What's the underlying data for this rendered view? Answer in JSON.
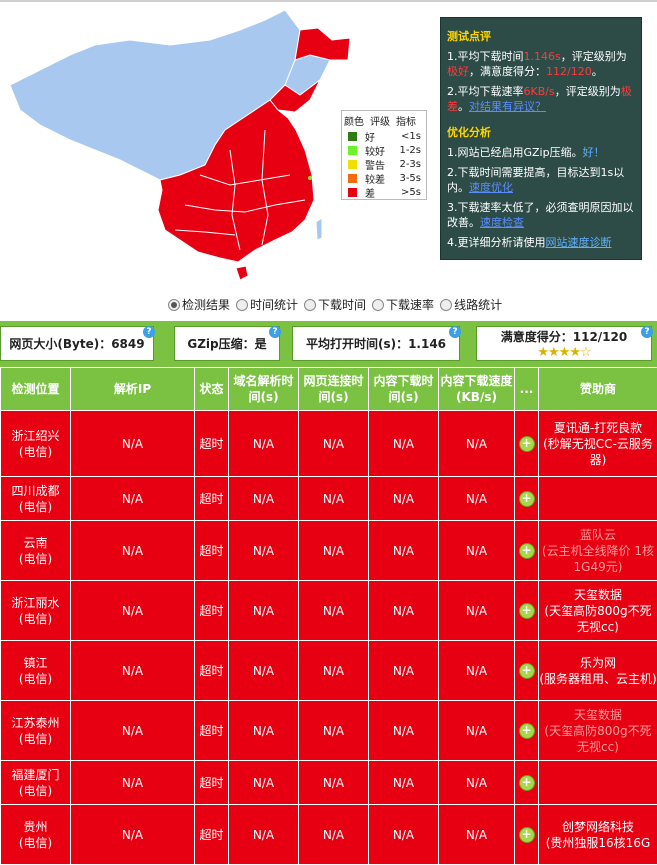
{
  "legend": {
    "headers": [
      "颜色",
      "评级",
      "指标"
    ],
    "rows": [
      {
        "color": "#2e7d14",
        "level": "好",
        "indicator": "<1s"
      },
      {
        "color": "#6cf22a",
        "level": "较好",
        "indicator": "1-2s"
      },
      {
        "color": "#f0e000",
        "level": "警告",
        "indicator": "2-3s"
      },
      {
        "color": "#f26b10",
        "level": "较差",
        "indicator": "3-5s"
      },
      {
        "color": "#e60012",
        "level": "差",
        "indicator": ">5s"
      }
    ]
  },
  "review": {
    "title": "测试点评",
    "l1a": "1.平均下载时间",
    "l1b": "1.146s",
    "l1c": "，评定级别为",
    "l1d": "极好",
    "l1e": "，满意度得分：",
    "l1f": "112/120",
    "l1g": "。",
    "l2a": "2.平均下载速率",
    "l2b": "6KB/s",
    "l2c": "，评定级别为",
    "l2d": "极差",
    "l2e": "。",
    "l2link": "对结果有异议？",
    "opt_title": "优化分析",
    "o1a": "1.网站已经启用GZip压缩。",
    "o1b": "好！",
    "o2a": "2.下载时间需要提高，目标达到1s以内。",
    "o2link": "速度优化",
    "o3a": "3.下载速率太低了，必须查明原因加以改善。",
    "o3link": "速度检查",
    "o4a": "4.更详细分析请使用",
    "o4link": "网站速度诊断"
  },
  "tabs": [
    "检测结果",
    "时间统计",
    "下载时间",
    "下载速率",
    "线路统计"
  ],
  "summary": {
    "size": "网页大小(Byte)：6849",
    "gzip": "GZip压缩：是",
    "avg": "平均打开时间(s)：1.146",
    "score": "满意度得分：112/120",
    "q": "?"
  },
  "table": {
    "headers": [
      "检测位置",
      "解析IP",
      "状态",
      "域名解析时间(s)",
      "网页连接时间(s)",
      "内容下载时间(s)",
      "内容下载速度(KB/s)",
      "...",
      "赞助商"
    ],
    "rows": [
      {
        "loc": "浙江绍兴",
        "isp": "(电信)",
        "ip": "N/A",
        "status": "超时",
        "dns": "N/A",
        "conn": "N/A",
        "dl": "N/A",
        "speed": "N/A",
        "sp1": "夏讯通-打死良款",
        "sp2": "(秒解无视CC-云服务器)"
      },
      {
        "loc": "四川成都",
        "isp": "(电信)",
        "ip": "N/A",
        "status": "超时",
        "dns": "N/A",
        "conn": "N/A",
        "dl": "N/A",
        "speed": "N/A",
        "sp1": "",
        "sp2": ""
      },
      {
        "loc": "云南",
        "isp": "(电信)",
        "ip": "N/A",
        "status": "超时",
        "dns": "N/A",
        "conn": "N/A",
        "dl": "N/A",
        "speed": "N/A",
        "sp1": "蓝队云",
        "sp2": "(云主机全线降价 1核1G49元)"
      },
      {
        "loc": "浙江丽水",
        "isp": "(电信)",
        "ip": "N/A",
        "status": "超时",
        "dns": "N/A",
        "conn": "N/A",
        "dl": "N/A",
        "speed": "N/A",
        "sp1": "天玺数据",
        "sp2": "(天玺高防800g不死无视cc)"
      },
      {
        "loc": "镇江",
        "isp": "(电信)",
        "ip": "N/A",
        "status": "超时",
        "dns": "N/A",
        "conn": "N/A",
        "dl": "N/A",
        "speed": "N/A",
        "sp1": "乐为网",
        "sp2": "(服务器租用、云主机)"
      },
      {
        "loc": "江苏泰州",
        "isp": "(电信)",
        "ip": "N/A",
        "status": "超时",
        "dns": "N/A",
        "conn": "N/A",
        "dl": "N/A",
        "speed": "N/A",
        "sp1": "天玺数据",
        "sp2": "(天玺高防800g不死无视cc)"
      },
      {
        "loc": "福建厦门",
        "isp": "(电信)",
        "ip": "N/A",
        "status": "超时",
        "dns": "N/A",
        "conn": "N/A",
        "dl": "N/A",
        "speed": "N/A",
        "sp1": "",
        "sp2": ""
      },
      {
        "loc": "贵州",
        "isp": "(电信)",
        "ip": "N/A",
        "status": "超时",
        "dns": "N/A",
        "conn": "N/A",
        "dl": "N/A",
        "speed": "N/A",
        "sp1": "创梦网络科技",
        "sp2": "(贵州独服16核16G"
      }
    ]
  },
  "colors": {
    "map_bad": "#e60012",
    "map_none": "#a8c8f0",
    "accent": "#7bc142",
    "panel": "#2d4c47"
  }
}
